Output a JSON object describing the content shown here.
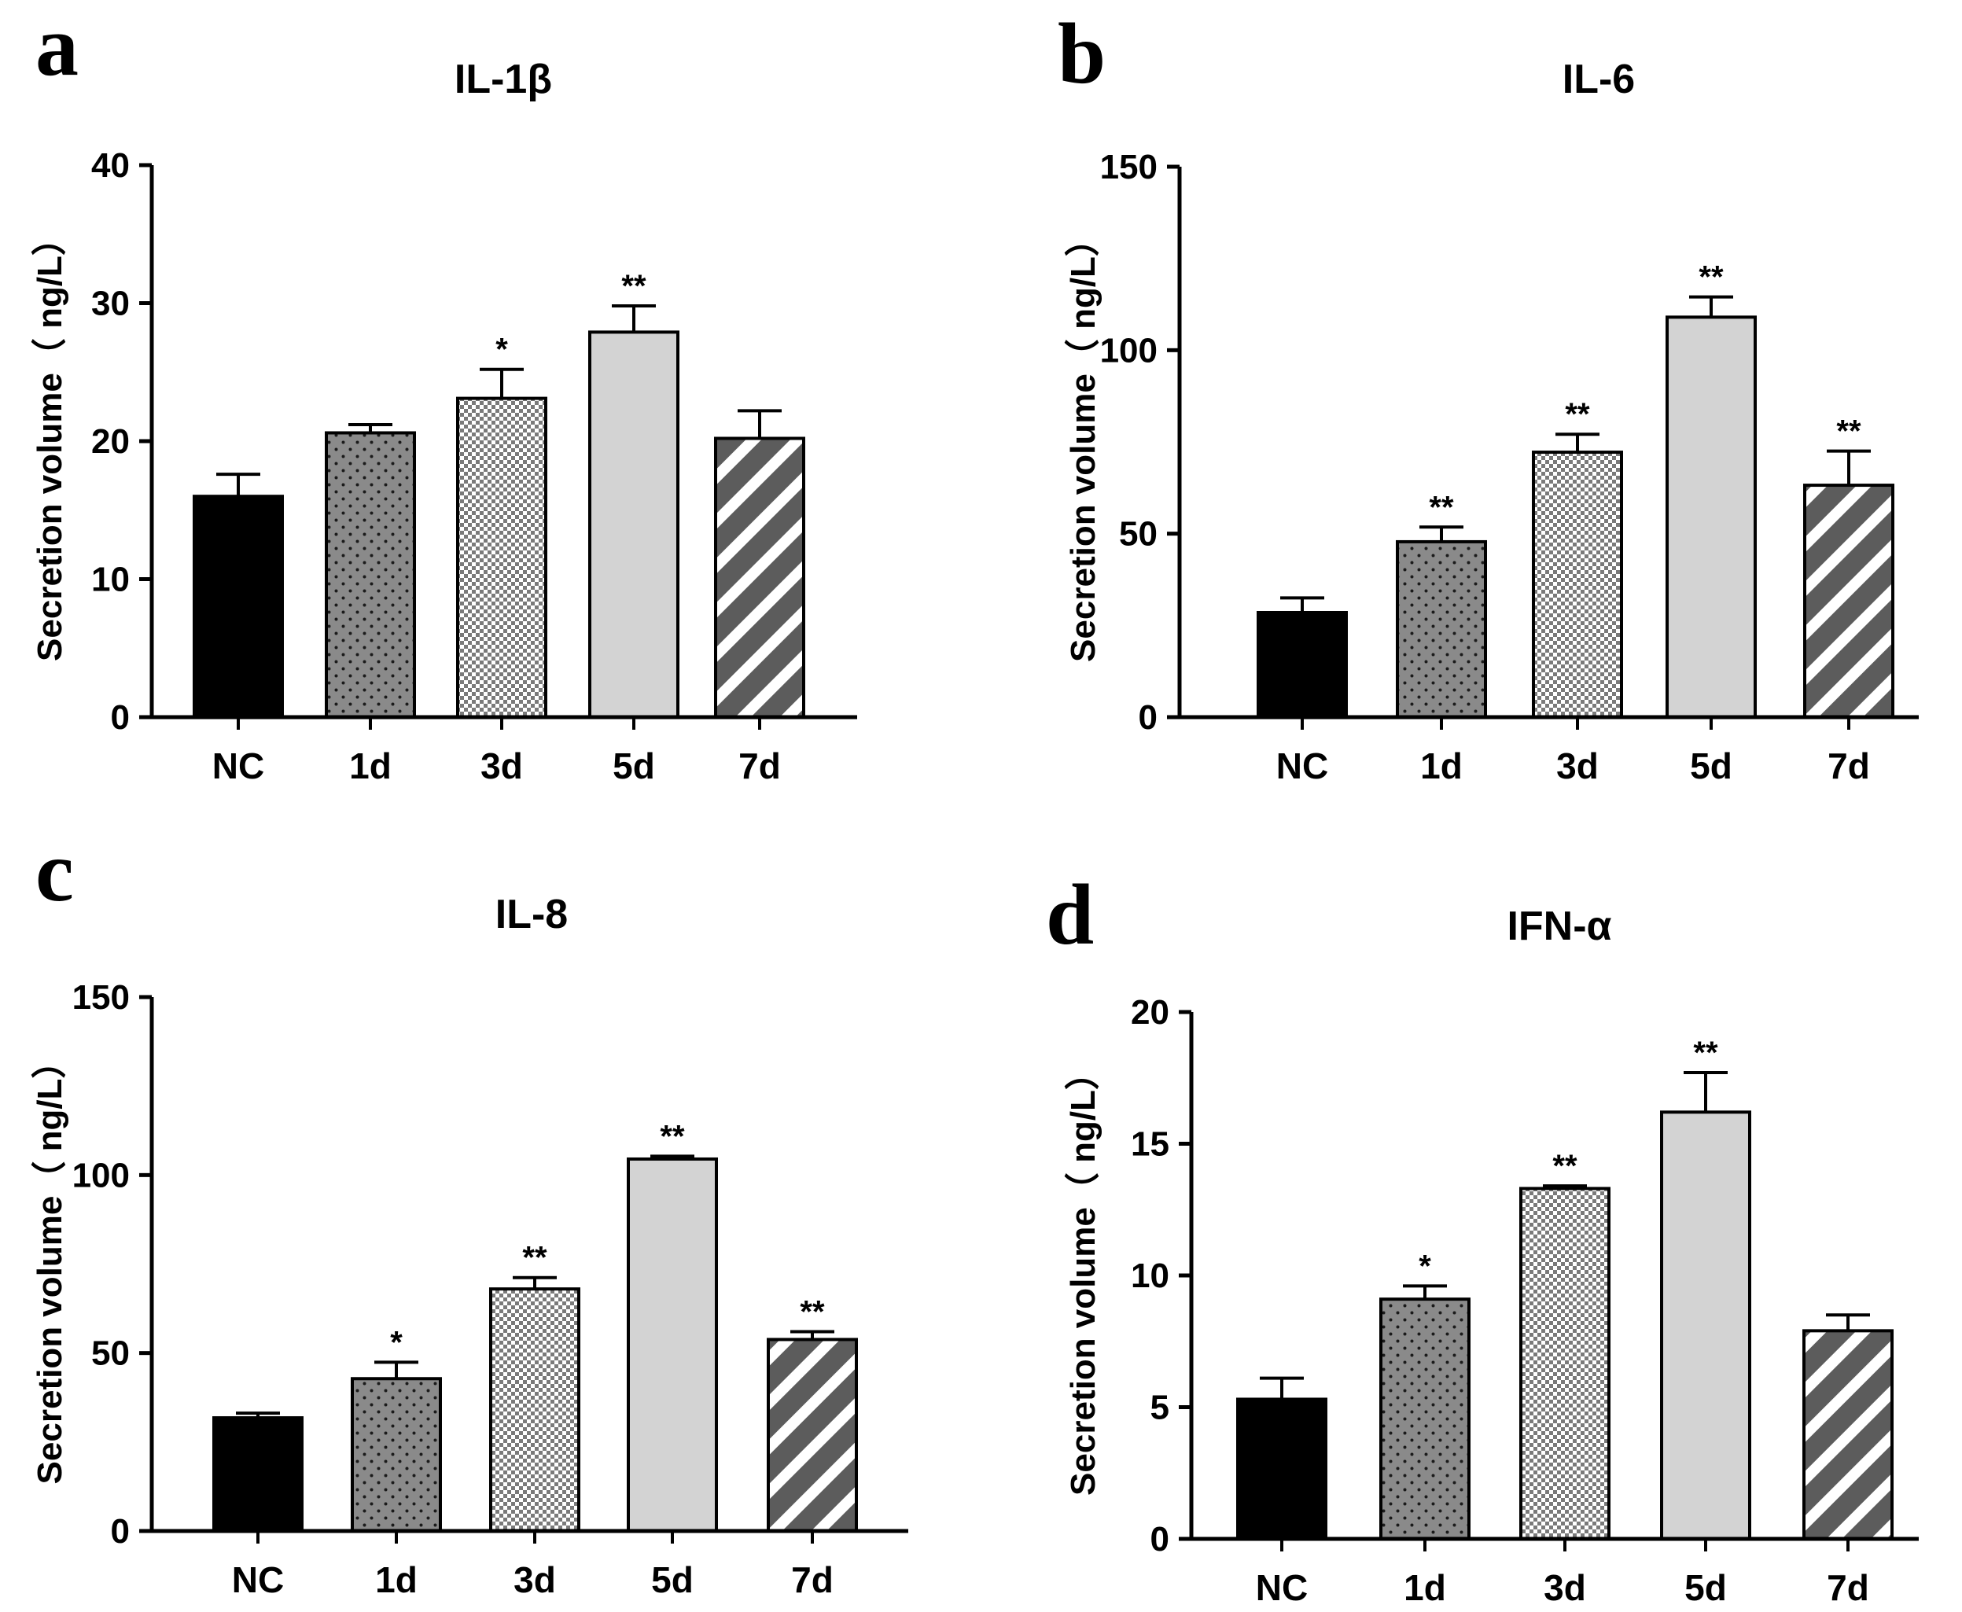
{
  "chart_data": [
    {
      "panel": "a",
      "type": "bar",
      "title": "IL-1β",
      "ylabel": "Secretion volume（ ng/L）",
      "xlabel": "",
      "ylim": [
        0,
        40
      ],
      "yticks": [
        "0",
        "10",
        "20",
        "30",
        "40"
      ],
      "categories": [
        "NC",
        "1d",
        "3d",
        "5d",
        "7d"
      ],
      "values": [
        16.0,
        20.6,
        23.1,
        27.9,
        20.2
      ],
      "errors": [
        1.6,
        0.6,
        2.1,
        1.9,
        2.0
      ],
      "significance": [
        "",
        "",
        "*",
        "**",
        ""
      ]
    },
    {
      "panel": "b",
      "type": "bar",
      "title": "IL-6",
      "ylabel": "Secretion volume（ ng/L）",
      "xlabel": "",
      "ylim": [
        0,
        150
      ],
      "yticks": [
        "0",
        "50",
        "100",
        "150"
      ],
      "categories": [
        "NC",
        "1d",
        "3d",
        "5d",
        "7d"
      ],
      "values": [
        28.5,
        47.8,
        72.2,
        109.0,
        63.2
      ],
      "errors": [
        4.0,
        4.0,
        4.9,
        5.5,
        9.3
      ],
      "significance": [
        "",
        "**",
        "**",
        "**",
        "**"
      ]
    },
    {
      "panel": "c",
      "type": "bar",
      "title": "IL-8",
      "ylabel": "Secretion volume（ ng/L）",
      "xlabel": "",
      "ylim": [
        0,
        150
      ],
      "yticks": [
        "0",
        "50",
        "100",
        "150"
      ],
      "categories": [
        "NC",
        "1d",
        "3d",
        "5d",
        "7d"
      ],
      "values": [
        31.8,
        42.8,
        68.0,
        104.5,
        53.8
      ],
      "errors": [
        1.3,
        4.6,
        3.2,
        0.8,
        2.2
      ],
      "significance": [
        "",
        "*",
        "**",
        "**",
        "**"
      ]
    },
    {
      "panel": "d",
      "type": "bar",
      "title": "IFN-α",
      "ylabel": "Secretion volume（ ng/L）",
      "xlabel": "",
      "ylim": [
        0,
        20
      ],
      "yticks": [
        "0",
        "5",
        "10",
        "15",
        "20"
      ],
      "categories": [
        "NC",
        "1d",
        "3d",
        "5d",
        "7d"
      ],
      "values": [
        5.3,
        9.1,
        13.3,
        16.2,
        7.9
      ],
      "errors": [
        0.8,
        0.5,
        0.1,
        1.5,
        0.6
      ],
      "significance": [
        "",
        "*",
        "**",
        "**",
        ""
      ]
    }
  ],
  "colors": {
    "nc": "#000000",
    "dots_fill": "#8a8a8a",
    "dots_dot": "#1a1a1a",
    "checker_a": "#ffffff",
    "checker_b": "#7a7a7a",
    "light": "#d3d3d3",
    "stripe_a": "#5c5c5c",
    "stripe_b": "#ffffff",
    "axis": "#000000"
  }
}
